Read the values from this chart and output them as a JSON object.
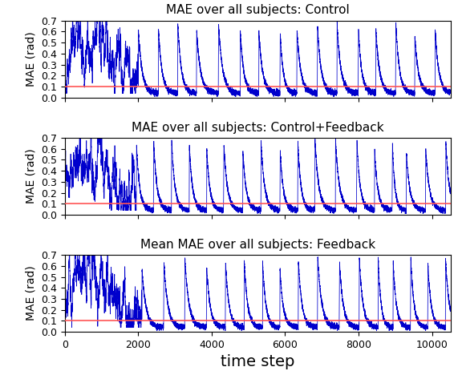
{
  "titles": [
    "MAE over all subjects: Control",
    "MAE over all subjects: Control+Feedback",
    "Mean MAE over all subjects: Feedback"
  ],
  "xlabel": "time step",
  "ylabel": "MAE (rad)",
  "xlim": [
    0,
    10500
  ],
  "ylim": [
    0.0,
    0.7
  ],
  "yticks": [
    0.0,
    0.1,
    0.2,
    0.3,
    0.4,
    0.5,
    0.6,
    0.7
  ],
  "xticks": [
    0,
    2000,
    4000,
    6000,
    8000,
    10000
  ],
  "red_line_y": 0.1,
  "line_color": "#0000cc",
  "red_line_color": "#ff5555",
  "n_steps": 10500,
  "title_fontsize": 11,
  "axis_fontsize": 10,
  "tick_fontsize": 9,
  "xlabel_fontsize": 14
}
